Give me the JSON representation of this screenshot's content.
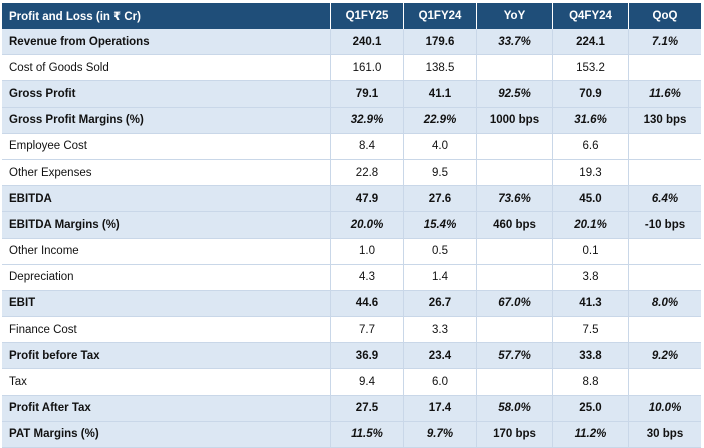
{
  "table": {
    "headers": [
      "Profit and Loss (in ₹ Cr)",
      "Q1FY25",
      "Q1FY24",
      "YoY",
      "Q4FY24",
      "QoQ"
    ],
    "rows": [
      {
        "label": "Revenue from Operations",
        "q1fy25": "240.1",
        "q1fy24": "179.6",
        "yoy": "33.7%",
        "q4fy24": "224.1",
        "qoq": "7.1%"
      },
      {
        "label": "Cost of Goods Sold",
        "q1fy25": "161.0",
        "q1fy24": "138.5",
        "yoy": "",
        "q4fy24": "153.2",
        "qoq": ""
      },
      {
        "label": "Gross Profit",
        "q1fy25": "79.1",
        "q1fy24": "41.1",
        "yoy": "92.5%",
        "q4fy24": "70.9",
        "qoq": "11.6%"
      },
      {
        "label": "Gross Profit Margins (%)",
        "q1fy25": "32.9%",
        "q1fy24": "22.9%",
        "yoy": "1000 bps",
        "q4fy24": "31.6%",
        "qoq": "130 bps"
      },
      {
        "label": "Employee Cost",
        "q1fy25": "8.4",
        "q1fy24": "4.0",
        "yoy": "",
        "q4fy24": "6.6",
        "qoq": ""
      },
      {
        "label": "Other Expenses",
        "q1fy25": "22.8",
        "q1fy24": "9.5",
        "yoy": "",
        "q4fy24": "19.3",
        "qoq": ""
      },
      {
        "label": "EBITDA",
        "q1fy25": "47.9",
        "q1fy24": "27.6",
        "yoy": "73.6%",
        "q4fy24": "45.0",
        "qoq": "6.4%"
      },
      {
        "label": "EBITDA Margins (%)",
        "q1fy25": "20.0%",
        "q1fy24": "15.4%",
        "yoy": "460 bps",
        "q4fy24": "20.1%",
        "qoq": "-10 bps"
      },
      {
        "label": "Other Income",
        "q1fy25": "1.0",
        "q1fy24": "0.5",
        "yoy": "",
        "q4fy24": "0.1",
        "qoq": ""
      },
      {
        "label": "Depreciation",
        "q1fy25": "4.3",
        "q1fy24": "1.4",
        "yoy": "",
        "q4fy24": "3.8",
        "qoq": ""
      },
      {
        "label": "EBIT",
        "q1fy25": "44.6",
        "q1fy24": "26.7",
        "yoy": "67.0%",
        "q4fy24": "41.3",
        "qoq": "8.0%"
      },
      {
        "label": "Finance Cost",
        "q1fy25": "7.7",
        "q1fy24": "3.3",
        "yoy": "",
        "q4fy24": "7.5",
        "qoq": ""
      },
      {
        "label": "Profit before Tax",
        "q1fy25": "36.9",
        "q1fy24": "23.4",
        "yoy": "57.7%",
        "q4fy24": "33.8",
        "qoq": "9.2%"
      },
      {
        "label": "Tax",
        "q1fy25": "9.4",
        "q1fy24": "6.0",
        "yoy": "",
        "q4fy24": "8.8",
        "qoq": ""
      },
      {
        "label": "Profit After Tax",
        "q1fy25": "27.5",
        "q1fy24": "17.4",
        "yoy": "58.0%",
        "q4fy24": "25.0",
        "qoq": "10.0%"
      },
      {
        "label": "PAT Margins (%)",
        "q1fy25": "11.5%",
        "q1fy24": "9.7%",
        "yoy": "170 bps",
        "q4fy24": "11.2%",
        "qoq": "30 bps"
      }
    ]
  },
  "colors": {
    "header_bg": "#1f4e79",
    "highlight_row_bg": "#dce7f3",
    "grid_line": "#c9d7e8"
  }
}
